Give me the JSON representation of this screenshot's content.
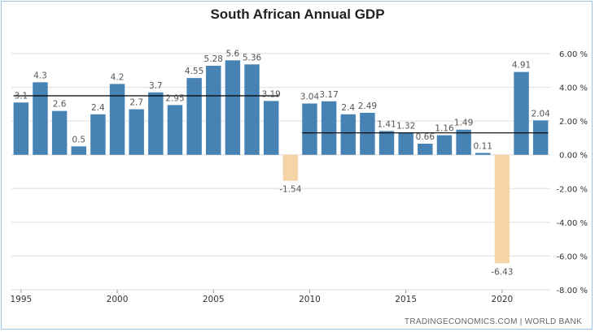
{
  "chart_data": {
    "type": "bar",
    "title": "South African Annual GDP",
    "source": "TRADINGECONOMICS.COM | WORLD BANK",
    "categories": [
      1995,
      1996,
      1997,
      1998,
      1999,
      2000,
      2001,
      2002,
      2003,
      2004,
      2005,
      2006,
      2007,
      2008,
      2009,
      2010,
      2011,
      2012,
      2013,
      2014,
      2015,
      2016,
      2017,
      2018,
      2019,
      2020,
      2021,
      2022
    ],
    "values": [
      3.1,
      4.3,
      2.6,
      0.5,
      2.4,
      4.2,
      2.7,
      3.7,
      2.95,
      4.55,
      5.28,
      5.6,
      5.36,
      3.19,
      -1.54,
      3.04,
      3.17,
      2.4,
      2.49,
      1.41,
      1.32,
      0.66,
      1.16,
      1.49,
      0.11,
      -6.43,
      4.91,
      2.04
    ],
    "value_labels": [
      "3.1",
      "4.3",
      "2.6",
      "0.5",
      "2.4",
      "4.2",
      "2.7",
      "3.7",
      "2.95",
      "4.55",
      "5.28",
      "5.6",
      "5.36",
      "3.19",
      "-1.54",
      "3.04",
      "3.17",
      "2.4",
      "2.49",
      "1.41",
      "1.32",
      "0.66",
      "1.16",
      "1.49",
      "0.11",
      "-6.43",
      "4.91",
      "2.04"
    ],
    "colors": {
      "default": "#4682b4",
      "highlight": "#f5d5a8",
      "grid": "#dddddd",
      "axis_text": "#333333",
      "line": "#000000"
    },
    "highlighted_categories": [
      2009,
      2020
    ],
    "x_tick_labels": [
      "1995",
      "2000",
      "2005",
      "2010",
      "2015",
      "2020"
    ],
    "y_tick_labels": [
      "6.00 %",
      "4.00 %",
      "2.00 %",
      "0.00 %",
      "-2.00 %",
      "-4.00 %",
      "-6.00 %",
      "-8.00 %"
    ],
    "y_ticks": [
      6,
      4,
      2,
      0,
      -2,
      -4,
      -6,
      -8
    ],
    "ylim": [
      -8,
      6
    ],
    "y_axis_side": "right",
    "grid": "horizontal",
    "reference_lines": [
      {
        "value": 3.5,
        "from": 1995,
        "to": 2008
      },
      {
        "value": 1.3,
        "from": 2010,
        "to": 2022
      }
    ]
  }
}
